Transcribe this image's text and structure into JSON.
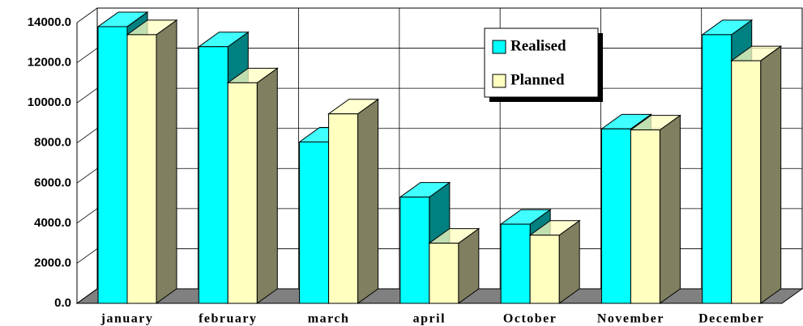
{
  "chart_data": {
    "type": "bar3d",
    "categories": [
      "january",
      "february",
      "march",
      "april",
      "October",
      "November",
      "December"
    ],
    "series": [
      {
        "name": "Realised",
        "color": "#00FFFF",
        "values": [
          13800,
          12800,
          8050,
          5300,
          3950,
          8700,
          13400
        ]
      },
      {
        "name": "Planned",
        "color": "#FFFFC0",
        "values": [
          13400,
          11000,
          9450,
          3000,
          3400,
          8650,
          12100
        ]
      }
    ],
    "ylim": [
      0,
      14000
    ],
    "yticks": [
      {
        "value": 0,
        "label": "0.0"
      },
      {
        "value": 2000,
        "label": "2000.0"
      },
      {
        "value": 4000,
        "label": "4000.0"
      },
      {
        "value": 6000,
        "label": "6000.0"
      },
      {
        "value": 8000,
        "label": "8000.0"
      },
      {
        "value": 10000,
        "label": "10000.0"
      },
      {
        "value": 12000,
        "label": "12000.0"
      },
      {
        "value": 14000,
        "label": "14000.0"
      }
    ],
    "grid": true
  }
}
